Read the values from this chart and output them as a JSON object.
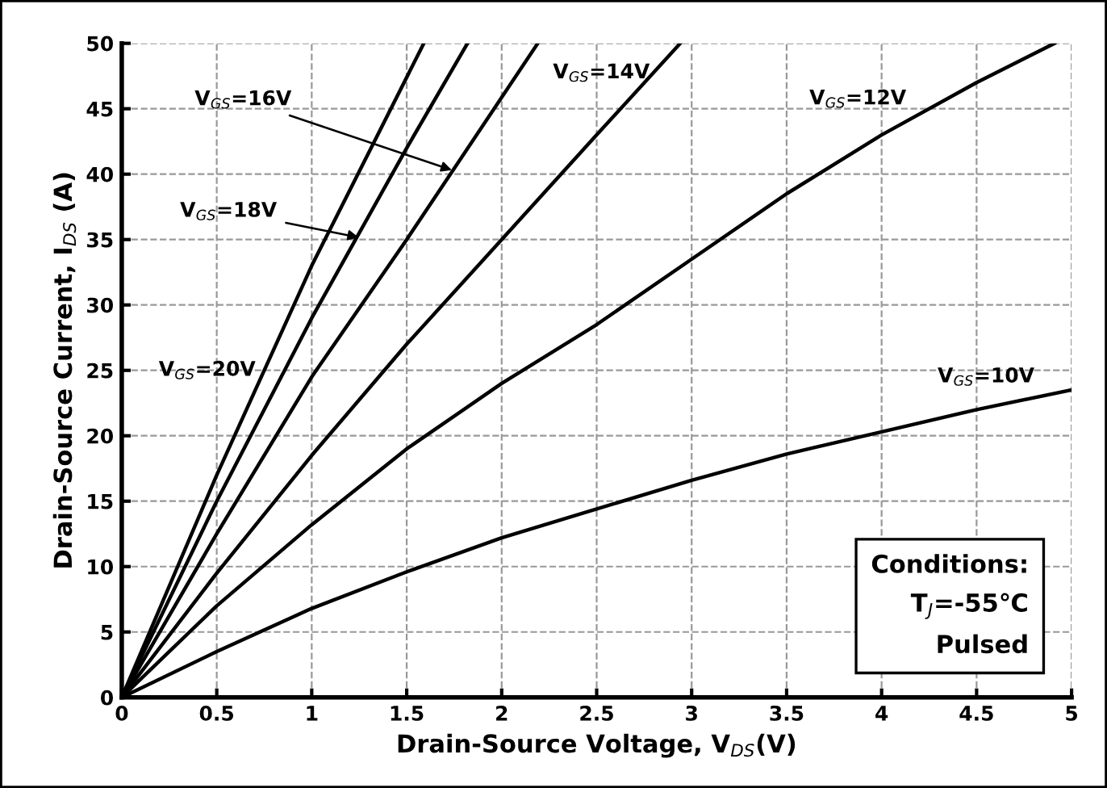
{
  "chart_data": {
    "type": "line",
    "xlabel": "Drain-Source Voltage, V$_{DS}$(V)",
    "ylabel": "Drain-Source Current, I$_{DS}$ (A)",
    "xlim": [
      0,
      5
    ],
    "ylim": [
      0,
      50
    ],
    "xticks": [
      0,
      0.5,
      1,
      1.5,
      2,
      2.5,
      3,
      3.5,
      4,
      4.5,
      5
    ],
    "yticks": [
      0,
      5,
      10,
      15,
      20,
      25,
      30,
      35,
      40,
      45,
      50
    ],
    "grid": true,
    "legend": false,
    "marker": "none",
    "line_style": "solid",
    "series": [
      {
        "color": "#000000",
        "x": [
          0,
          0.5,
          1,
          1.59
        ],
        "values": [
          0,
          17,
          33,
          50
        ]
      },
      {
        "color": "#000000",
        "x": [
          0,
          0.5,
          1,
          1.5,
          1.82
        ],
        "values": [
          0,
          15,
          29,
          42,
          50
        ]
      },
      {
        "color": "#000000",
        "x": [
          0,
          0.5,
          1,
          1.5,
          2.19
        ],
        "values": [
          0,
          12.5,
          24.5,
          35,
          50
        ]
      },
      {
        "color": "#000000",
        "x": [
          0,
          0.5,
          1,
          1.5,
          2,
          2.5,
          2.94
        ],
        "values": [
          0,
          9.5,
          18.5,
          27,
          35,
          43,
          50
        ]
      },
      {
        "color": "#000000",
        "x": [
          0,
          0.5,
          1,
          1.5,
          2,
          2.5,
          3,
          3.5,
          4,
          4.5,
          4.91
        ],
        "values": [
          0,
          7,
          13.2,
          19,
          24,
          28.5,
          33.5,
          38.5,
          43,
          47,
          50
        ]
      },
      {
        "color": "#000000",
        "x": [
          0,
          0.5,
          1,
          1.5,
          2,
          2.5,
          3,
          3.5,
          4,
          4.5,
          5
        ],
        "values": [
          0,
          3.5,
          6.8,
          9.6,
          12.2,
          14.4,
          16.6,
          18.6,
          20.3,
          22,
          23.5
        ]
      }
    ],
    "annotations": [
      "V$_{GS}$=20V",
      {
        "text": "V$_{GS}$=18V",
        "x": 1.27,
        "y": 35.1
      },
      {
        "text": "V$_{GS}$=16V",
        "x": 1.76,
        "y": 40.2
      },
      "V$_{GS}$=14V",
      "V$_{GS}$=12V",
      "V$_{GS}$=10V",
      "Conditions:\nT$_{J}$=-55℃\nPulsed"
    ]
  }
}
